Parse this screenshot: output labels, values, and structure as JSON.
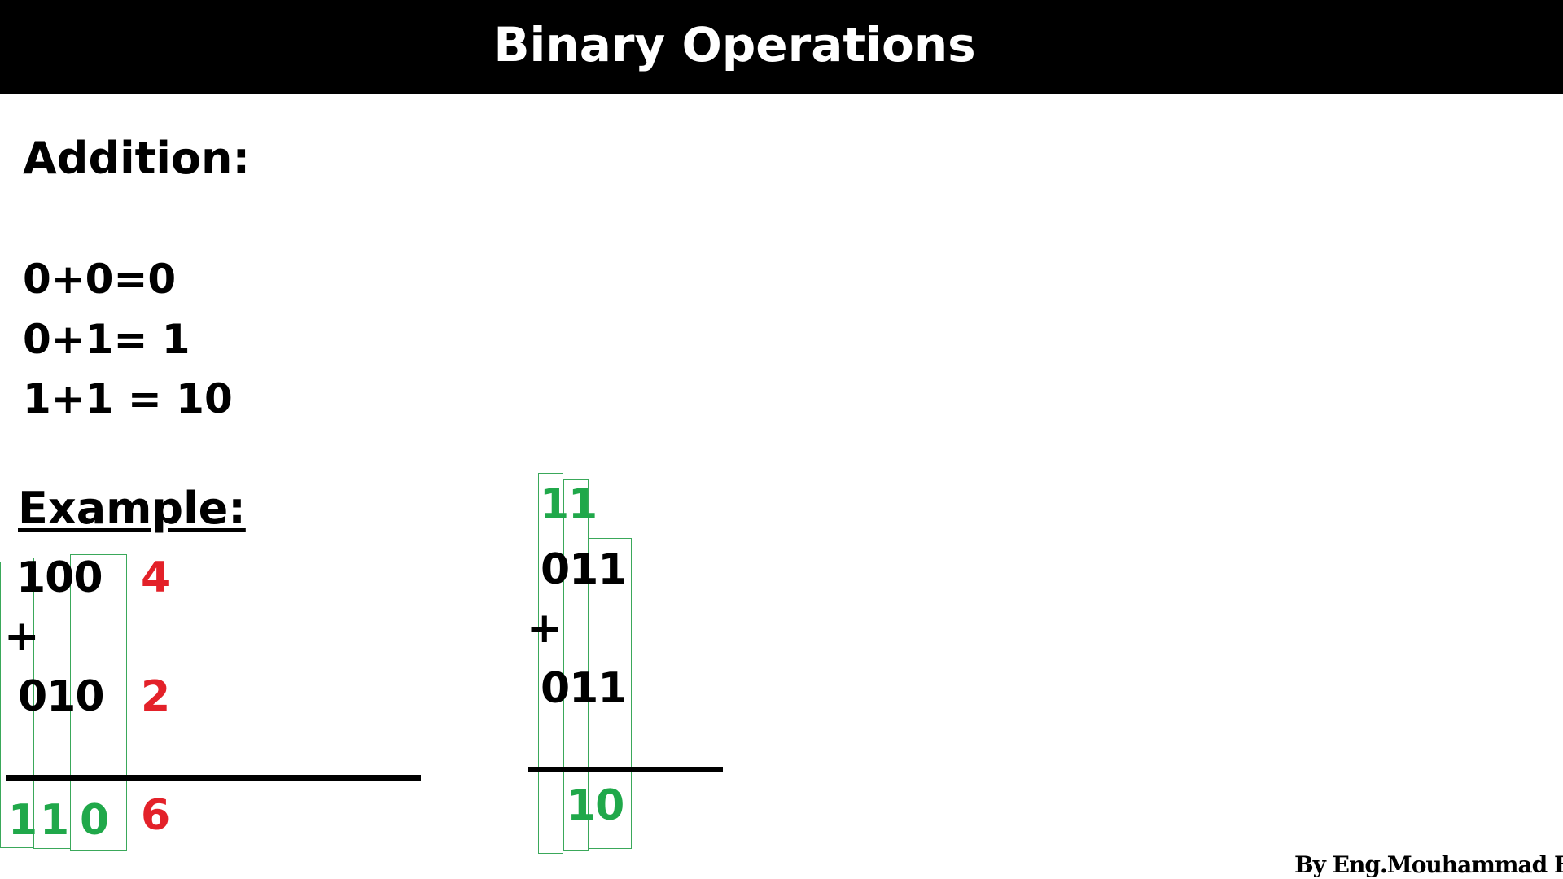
{
  "header": {
    "title": "Binary Operations"
  },
  "addition": {
    "heading": "Addition:",
    "rules": [
      "0+0=0",
      "0+1= 1",
      "1+1 = 10"
    ]
  },
  "example": {
    "heading": "Example:",
    "left": {
      "operand1": "100",
      "operand1_decimal": "4",
      "operator": "+",
      "operand2": "010",
      "operand2_decimal": "2",
      "result_digits": [
        "1",
        "1",
        "0"
      ],
      "result_decimal": "6"
    },
    "right": {
      "carries": [
        "1",
        "1"
      ],
      "operand1": "011",
      "operator": "+",
      "operand2": "011",
      "result": "10"
    }
  },
  "footer": {
    "credit": "By Eng.Mouhammad Hamsho"
  },
  "colors": {
    "header_bg": "#000000",
    "decimal_red": "#e32129",
    "result_green": "#20a84a",
    "box_green": "#3aa85a"
  }
}
